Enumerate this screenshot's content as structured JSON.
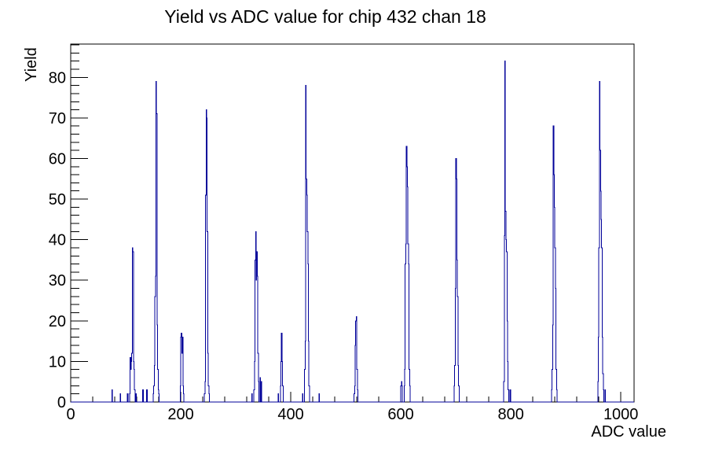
{
  "chart_data": {
    "type": "bar",
    "title": "Yield vs ADC value for chip 432 chan 18",
    "xlabel": "ADC value",
    "ylabel": "Yield",
    "xlim": [
      0,
      1024
    ],
    "ylim": [
      0,
      88.2
    ],
    "x_major_tick_interval": 200,
    "x_minor_tick_interval": 40,
    "y_major_tick_interval": 10,
    "y_minor_tick_interval": 2,
    "grid": false,
    "legend": "none",
    "line_color": "#000099",
    "frame_color": "#000000",
    "background_color": "#ffffff",
    "bin_width_adc": 1,
    "bins": [
      [
        75,
        3
      ],
      [
        90,
        2
      ],
      [
        103,
        2
      ],
      [
        107,
        2
      ],
      [
        108,
        11
      ],
      [
        109,
        8
      ],
      [
        110,
        10
      ],
      [
        111,
        12
      ],
      [
        112,
        38
      ],
      [
        113,
        37
      ],
      [
        114,
        10
      ],
      [
        115,
        8
      ],
      [
        116,
        3
      ],
      [
        118,
        2
      ],
      [
        131,
        3
      ],
      [
        138,
        3
      ],
      [
        150,
        2
      ],
      [
        151,
        4
      ],
      [
        152,
        9
      ],
      [
        153,
        26
      ],
      [
        154,
        31
      ],
      [
        155,
        79
      ],
      [
        156,
        71
      ],
      [
        157,
        19
      ],
      [
        158,
        8
      ],
      [
        159,
        3
      ],
      [
        160,
        2
      ],
      [
        199,
        4
      ],
      [
        200,
        16
      ],
      [
        201,
        17
      ],
      [
        202,
        12
      ],
      [
        203,
        16
      ],
      [
        204,
        4
      ],
      [
        205,
        2
      ],
      [
        243,
        2
      ],
      [
        244,
        5
      ],
      [
        245,
        51
      ],
      [
        246,
        72
      ],
      [
        247,
        70
      ],
      [
        248,
        42
      ],
      [
        249,
        12
      ],
      [
        250,
        4
      ],
      [
        251,
        2
      ],
      [
        329,
        2
      ],
      [
        333,
        3
      ],
      [
        334,
        10
      ],
      [
        335,
        35
      ],
      [
        336,
        42
      ],
      [
        337,
        30
      ],
      [
        338,
        37
      ],
      [
        339,
        31
      ],
      [
        340,
        12
      ],
      [
        341,
        5
      ],
      [
        344,
        6
      ],
      [
        346,
        5
      ],
      [
        377,
        2
      ],
      [
        381,
        4
      ],
      [
        382,
        10
      ],
      [
        383,
        17
      ],
      [
        384,
        10
      ],
      [
        385,
        4
      ],
      [
        421,
        2
      ],
      [
        425,
        8
      ],
      [
        426,
        15
      ],
      [
        427,
        78
      ],
      [
        428,
        55
      ],
      [
        429,
        51
      ],
      [
        430,
        42
      ],
      [
        431,
        34
      ],
      [
        432,
        15
      ],
      [
        433,
        4
      ],
      [
        451,
        2
      ],
      [
        515,
        2
      ],
      [
        516,
        4
      ],
      [
        517,
        14
      ],
      [
        518,
        20
      ],
      [
        519,
        21
      ],
      [
        520,
        8
      ],
      [
        521,
        3
      ],
      [
        600,
        4
      ],
      [
        601,
        5
      ],
      [
        602,
        4
      ],
      [
        606,
        4
      ],
      [
        607,
        8
      ],
      [
        608,
        34
      ],
      [
        609,
        39
      ],
      [
        610,
        63
      ],
      [
        611,
        58
      ],
      [
        612,
        53
      ],
      [
        613,
        39
      ],
      [
        614,
        34
      ],
      [
        615,
        8
      ],
      [
        616,
        4
      ],
      [
        697,
        4
      ],
      [
        698,
        9
      ],
      [
        699,
        28
      ],
      [
        700,
        60
      ],
      [
        701,
        55
      ],
      [
        702,
        35
      ],
      [
        703,
        26
      ],
      [
        704,
        9
      ],
      [
        705,
        4
      ],
      [
        787,
        5
      ],
      [
        788,
        41
      ],
      [
        789,
        84
      ],
      [
        790,
        47
      ],
      [
        791,
        40
      ],
      [
        792,
        37
      ],
      [
        793,
        20
      ],
      [
        794,
        10
      ],
      [
        795,
        3
      ],
      [
        798,
        3
      ],
      [
        799,
        3
      ],
      [
        874,
        3
      ],
      [
        875,
        8
      ],
      [
        876,
        19
      ],
      [
        877,
        68
      ],
      [
        878,
        56
      ],
      [
        879,
        48
      ],
      [
        880,
        38
      ],
      [
        881,
        28
      ],
      [
        882,
        8
      ],
      [
        883,
        3
      ],
      [
        958,
        5
      ],
      [
        959,
        16
      ],
      [
        960,
        38
      ],
      [
        961,
        79
      ],
      [
        962,
        62
      ],
      [
        963,
        52
      ],
      [
        964,
        45
      ],
      [
        965,
        38
      ],
      [
        966,
        16
      ],
      [
        967,
        7
      ],
      [
        968,
        3
      ],
      [
        971,
        3
      ]
    ]
  }
}
